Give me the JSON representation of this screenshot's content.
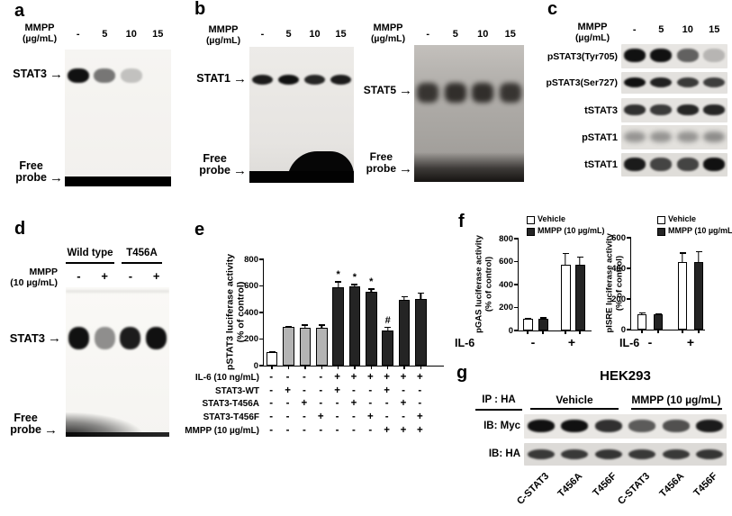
{
  "symbols": {
    "arrow": "→"
  },
  "panel_a": {
    "label": "a",
    "treatment": "MMPP",
    "unit": "(µg/mL)",
    "doses": [
      "-",
      "5",
      "10",
      "15"
    ],
    "complex": "STAT3",
    "free_line1": "Free",
    "free_line2": "probe",
    "bands": [
      1,
      0.55,
      0.22,
      0
    ]
  },
  "panel_b": {
    "label": "b",
    "blots": [
      {
        "treatment": "MMPP",
        "unit": "(µg/mL)",
        "doses": [
          "-",
          "5",
          "10",
          "15"
        ],
        "complex": "STAT1",
        "free_line1": "Free",
        "free_line2": "probe",
        "bands": [
          0.95,
          1,
          0.9,
          0.95
        ]
      },
      {
        "treatment": "MMPP",
        "unit": "(µg/mL)",
        "doses": [
          "-",
          "5",
          "10",
          "15"
        ],
        "complex": "STAT5",
        "free_line1": "Free",
        "free_line2": "probe",
        "bands": [
          0.9,
          0.95,
          0.95,
          0.9
        ]
      }
    ]
  },
  "panel_c": {
    "label": "c",
    "treatment": "MMPP",
    "unit": "(µg/mL)",
    "doses": [
      "-",
      "5",
      "10",
      "15"
    ],
    "blots": [
      {
        "name": "pSTAT3(Tyr705)",
        "bands": [
          1,
          1,
          0.62,
          0.22
        ]
      },
      {
        "name": "pSTAT3(Ser727)",
        "bands": [
          1,
          0.92,
          0.8,
          0.78
        ]
      },
      {
        "name": "tSTAT3",
        "bands": [
          0.85,
          0.8,
          0.9,
          0.9
        ]
      },
      {
        "name": "pSTAT1",
        "bands": [
          0.45,
          0.45,
          0.45,
          0.5
        ]
      },
      {
        "name": "tSTAT1",
        "bands": [
          0.95,
          0.75,
          0.75,
          1
        ]
      }
    ]
  },
  "panel_d": {
    "label": "d",
    "groups": [
      "Wild type",
      "T456A"
    ],
    "treatment_line1": "MMPP",
    "treatment_line2": "(10 µg/mL)",
    "doses": [
      "-",
      "+",
      "-",
      "+"
    ],
    "complex": "STAT3",
    "free_line1": "Free",
    "free_line2": "probe",
    "bands": [
      1,
      0.45,
      0.95,
      1
    ]
  },
  "panel_e": {
    "label": "e"
  },
  "panel_f": {
    "label": "f"
  },
  "panel_g": {
    "label": "g",
    "title": "HEK293",
    "ip": "IP : HA",
    "groups": [
      "Vehicle",
      "MMPP (10 µg/mL)"
    ],
    "blots": [
      {
        "name": "IB: Myc",
        "bands": [
          1,
          1,
          0.85,
          0.65,
          0.7,
          0.95
        ]
      },
      {
        "name": "IB: HA",
        "bands": [
          0.8,
          0.8,
          0.82,
          0.8,
          0.8,
          0.82
        ]
      }
    ],
    "lanes": [
      "C-STAT3",
      "T456A",
      "T456F",
      "C-STAT3",
      "T456A",
      "T456F"
    ]
  },
  "chart_data": [
    {
      "id": "pstat3_luciferase",
      "type": "bar",
      "ylabel": "pSTAT3 luciferase activity",
      "ylabel2": "(% of control)",
      "ylim": [
        0,
        800
      ],
      "yticks": [
        0,
        200,
        400,
        600,
        800
      ],
      "values": [
        100,
        290,
        285,
        285,
        590,
        595,
        555,
        265,
        495,
        505
      ],
      "errors": [
        8,
        10,
        25,
        25,
        45,
        20,
        25,
        28,
        30,
        45
      ],
      "annotations": [
        "",
        "",
        "",
        "",
        "*",
        "*",
        "*",
        "#",
        "",
        ""
      ],
      "bar_styles": [
        "white",
        "gray",
        "gray",
        "gray",
        "dark",
        "dark",
        "dark",
        "dark",
        "dark",
        "dark"
      ],
      "conditions": [
        {
          "label": "IL-6 (10 ng/mL)",
          "values": [
            "-",
            "-",
            "-",
            "-",
            "+",
            "+",
            "+",
            "+",
            "+",
            "+"
          ]
        },
        {
          "label": "STAT3-WT",
          "values": [
            "-",
            "+",
            "-",
            "-",
            "+",
            "-",
            "-",
            "+",
            "-",
            "-"
          ]
        },
        {
          "label": "STAT3-T456A",
          "values": [
            "-",
            "-",
            "+",
            "-",
            "-",
            "+",
            "-",
            "-",
            "+",
            "-"
          ]
        },
        {
          "label": "STAT3-T456F",
          "values": [
            "-",
            "-",
            "-",
            "+",
            "-",
            "-",
            "+",
            "-",
            "-",
            "+"
          ]
        },
        {
          "label": "MMPP (10 µg/mL)",
          "values": [
            "-",
            "-",
            "-",
            "-",
            "-",
            "-",
            "-",
            "+",
            "+",
            "+"
          ]
        }
      ]
    },
    {
      "id": "pgas_luciferase",
      "type": "grouped_bar",
      "ylabel": "pGAS luciferase activity",
      "ylabel2": "(% of control)",
      "ylim": [
        0,
        800
      ],
      "yticks": [
        0,
        200,
        400,
        600,
        800
      ],
      "legend": [
        "Vehicle",
        "MMPP (10 µg/mL)"
      ],
      "xlabel": "IL-6",
      "categories": [
        "-",
        "+"
      ],
      "series": [
        {
          "name": "Vehicle",
          "style": "white",
          "values": [
            100,
            570
          ],
          "errors": [
            10,
            105
          ]
        },
        {
          "name": "MMPP (10 µg/mL)",
          "style": "dark",
          "values": [
            105,
            575
          ],
          "errors": [
            10,
            70
          ]
        }
      ]
    },
    {
      "id": "pisre_luciferase",
      "type": "grouped_bar",
      "ylabel": "pISRE luciferase activity",
      "ylabel2": "(% of control)",
      "ylim": [
        0,
        600
      ],
      "yticks": [
        0,
        200,
        400,
        600
      ],
      "legend": [
        "Vehicle",
        "MMPP (10 µg/mL)"
      ],
      "xlabel": "IL-6",
      "categories": [
        "-",
        "+"
      ],
      "series": [
        {
          "name": "Vehicle",
          "style": "white",
          "values": [
            100,
            440
          ],
          "errors": [
            12,
            65
          ]
        },
        {
          "name": "MMPP (10 µg/mL)",
          "style": "dark",
          "values": [
            100,
            440
          ],
          "errors": [
            8,
            72
          ]
        }
      ]
    }
  ]
}
